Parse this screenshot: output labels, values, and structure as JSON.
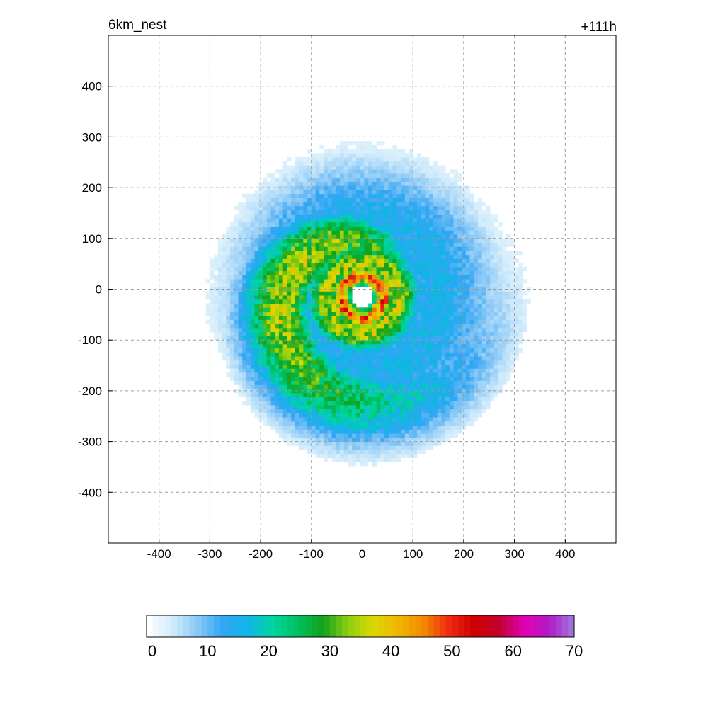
{
  "chart_data": {
    "type": "heatmap",
    "title": "6km_nest",
    "time_label": "+111h",
    "xlabel": "",
    "ylabel": "",
    "xlim": [
      -500,
      500
    ],
    "ylim": [
      -500,
      500
    ],
    "x_ticks": [
      -400,
      -300,
      -200,
      -100,
      0,
      100,
      200,
      300,
      400
    ],
    "y_ticks": [
      400,
      300,
      200,
      100,
      0,
      -100,
      -200,
      -300,
      -400
    ],
    "x_tick_labels": [
      "-400",
      "-300",
      "-200",
      "-100",
      "0",
      "100",
      "200",
      "300",
      "400"
    ],
    "y_tick_labels": [
      "400",
      "300",
      "200",
      "100",
      "0",
      "-100",
      "-200",
      "-300",
      "-400"
    ],
    "grid": true,
    "colorbar": {
      "range": [
        0,
        70
      ],
      "step": 1,
      "ticks": [
        0,
        10,
        20,
        30,
        40,
        50,
        60,
        70
      ],
      "tick_labels": [
        "0",
        "10",
        "20",
        "30",
        "40",
        "50",
        "60",
        "70"
      ]
    },
    "eye": {
      "x": 0,
      "y": -15
    }
  },
  "colors": {
    "background": "#ffffff",
    "frame": "#000000",
    "grid": "#9a9a9a",
    "scale_stops": [
      "#ffffff",
      "#d2ecfb",
      "#8cc9f6",
      "#33a6f4",
      "#10b4e6",
      "#00d6a0",
      "#00c060",
      "#11a21c",
      "#8ccf10",
      "#dcd800",
      "#f0b600",
      "#f28a00",
      "#f02a12",
      "#cf0000",
      "#c2002c",
      "#e000b4",
      "#b21ac6",
      "#a07ae0"
    ]
  }
}
